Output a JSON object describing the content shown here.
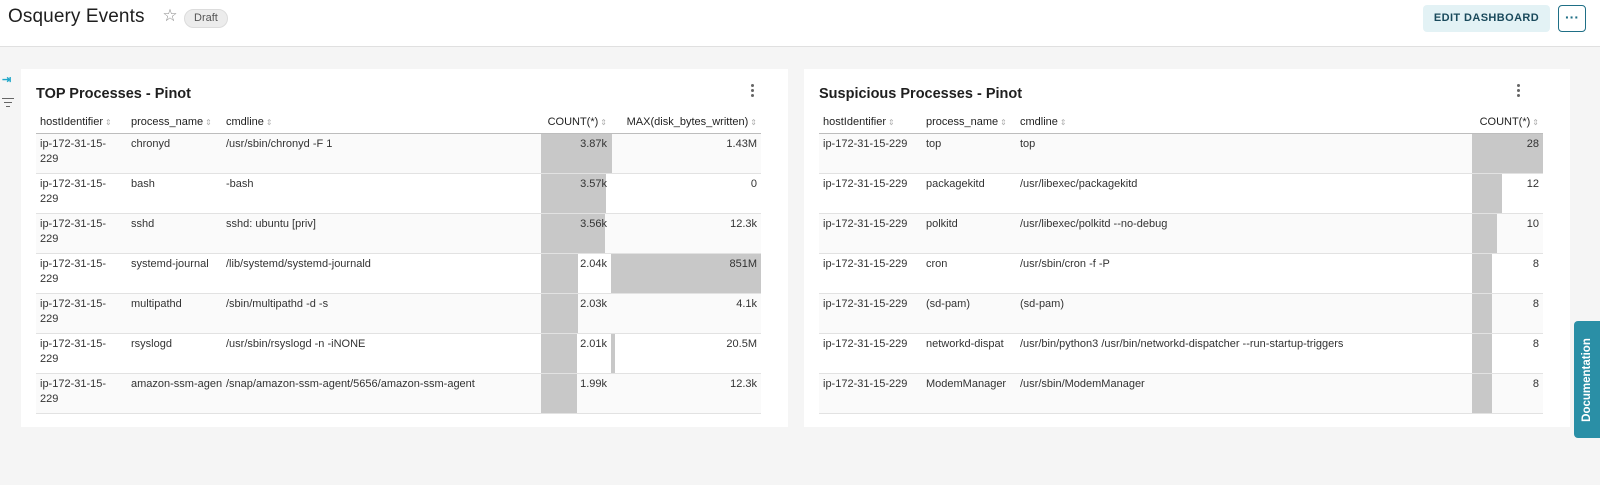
{
  "header": {
    "title": "Osquery Events",
    "status_badge": "Draft",
    "edit_button": "EDIT DASHBOARD",
    "more_button": "···"
  },
  "sidebar": {
    "collapse_icon": "⇥"
  },
  "panels": [
    {
      "title": "TOP Processes - Pinot",
      "columns": [
        "hostIdentifier",
        "process_name",
        "cmdline",
        "COUNT(*)",
        "MAX(disk_bytes_written)"
      ],
      "rows": [
        {
          "host": "ip-172-31-15-229",
          "process": "chronyd",
          "cmd": "/usr/sbin/chronyd -F 1",
          "count": "3.87k",
          "count_value": 3870,
          "max": "1.43M",
          "max_value": 1430000
        },
        {
          "host": "ip-172-31-15-229",
          "process": "bash",
          "cmd": "-bash",
          "count": "3.57k",
          "count_value": 3570,
          "max": "0",
          "max_value": 0
        },
        {
          "host": "ip-172-31-15-229",
          "process": "sshd",
          "cmd": "sshd: ubuntu [priv]",
          "count": "3.56k",
          "count_value": 3560,
          "max": "12.3k",
          "max_value": 12300
        },
        {
          "host": "ip-172-31-15-229",
          "process": "systemd-journal",
          "cmd": "/lib/systemd/systemd-journald",
          "count": "2.04k",
          "count_value": 2040,
          "max": "851M",
          "max_value": 851000000
        },
        {
          "host": "ip-172-31-15-229",
          "process": "multipathd",
          "cmd": "/sbin/multipathd -d -s",
          "count": "2.03k",
          "count_value": 2030,
          "max": "4.1k",
          "max_value": 4100
        },
        {
          "host": "ip-172-31-15-229",
          "process": "rsyslogd",
          "cmd": "/usr/sbin/rsyslogd -n -iNONE",
          "count": "2.01k",
          "count_value": 2010,
          "max": "20.5M",
          "max_value": 20500000
        },
        {
          "host": "ip-172-31-15-229",
          "process": "amazon-ssm-agen",
          "cmd": "/snap/amazon-ssm-agent/5656/amazon-ssm-agent",
          "count": "1.99k",
          "count_value": 1990,
          "max": "12.3k",
          "max_value": 12300
        }
      ]
    },
    {
      "title": "Suspicious Processes - Pinot",
      "columns": [
        "hostIdentifier",
        "process_name",
        "cmdline",
        "COUNT(*)"
      ],
      "rows": [
        {
          "host": "ip-172-31-15-229",
          "process": "top",
          "cmd": "top",
          "count": "28",
          "count_value": 28
        },
        {
          "host": "ip-172-31-15-229",
          "process": "packagekitd",
          "cmd": "/usr/libexec/packagekitd",
          "count": "12",
          "count_value": 12
        },
        {
          "host": "ip-172-31-15-229",
          "process": "polkitd",
          "cmd": "/usr/libexec/polkitd --no-debug",
          "count": "10",
          "count_value": 10
        },
        {
          "host": "ip-172-31-15-229",
          "process": "cron",
          "cmd": "/usr/sbin/cron -f -P",
          "count": "8",
          "count_value": 8
        },
        {
          "host": "ip-172-31-15-229",
          "process": "(sd-pam)",
          "cmd": "(sd-pam)",
          "count": "8",
          "count_value": 8
        },
        {
          "host": "ip-172-31-15-229",
          "process": "networkd-dispat",
          "cmd": "/usr/bin/python3 /usr/bin/networkd-dispatcher --run-startup-triggers",
          "count": "8",
          "count_value": 8
        },
        {
          "host": "ip-172-31-15-229",
          "process": "ModemManager",
          "cmd": "/usr/sbin/ModemManager",
          "count": "8",
          "count_value": 8
        }
      ]
    }
  ],
  "documentation_tab": "Documentation",
  "colors": {
    "accent": "#20a7c9",
    "edit_button_bg": "#e3f2f5",
    "bar_fill": "#c8c8c8",
    "doc_tab": "#2a8fa6"
  }
}
